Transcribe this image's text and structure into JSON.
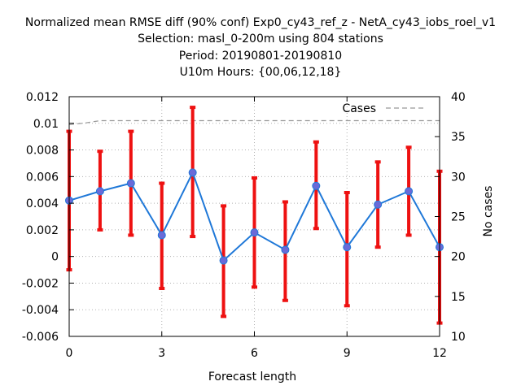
{
  "title_lines": [
    "Normalized mean RMSE diff (90% conf) Exp0_cy43_ref_z - NetA_cy43_iobs_roel_v1",
    "Selection: masl_0-200m using   804 stations",
    "Period: 20190801-20190810",
    "U10m   Hours: {00,06,12,18}"
  ],
  "chart_data": {
    "type": "line",
    "title": "Normalized mean RMSE diff (90% conf) Exp0_cy43_ref_z - NetA_cy43_iobs_roel_v1",
    "xlabel": "Forecast length",
    "ylabel": "",
    "y2label": "No cases",
    "xlim": [
      0,
      12
    ],
    "ylim": [
      -0.006,
      0.012
    ],
    "y2lim": [
      10,
      40
    ],
    "xticks": [
      "0",
      "3",
      "6",
      "9",
      "12"
    ],
    "yticks": [
      "-0.006",
      "-0.004",
      "-0.002",
      "0",
      "0.002",
      "0.004",
      "0.006",
      "0.008",
      "0.01",
      "0.012"
    ],
    "y2ticks": [
      "10",
      "15",
      "20",
      "25",
      "30",
      "35",
      "40"
    ],
    "grid": true,
    "legend_position": "top-right",
    "x": [
      0,
      1,
      2,
      3,
      4,
      5,
      6,
      7,
      8,
      9,
      10,
      11,
      12
    ],
    "series": [
      {
        "type": "line-errorbar",
        "color": "#1f78d8",
        "marker_color": "#6a6ad8",
        "error_color": "#ee1111",
        "values": [
          0.0042,
          0.0049,
          0.0055,
          0.0016,
          0.0063,
          -0.0003,
          0.0018,
          0.0005,
          0.0053,
          0.0007,
          0.0039,
          0.0049,
          0.0007
        ],
        "lower": [
          -0.001,
          0.002,
          0.0016,
          -0.0024,
          0.0015,
          -0.0045,
          -0.0023,
          -0.0033,
          0.0021,
          -0.0037,
          0.0007,
          0.0016,
          -0.005
        ],
        "upper": [
          0.0094,
          0.0079,
          0.0094,
          0.0055,
          0.0112,
          0.0038,
          0.0059,
          0.0041,
          0.0086,
          0.0048,
          0.0071,
          0.0082,
          0.0064
        ]
      },
      {
        "name": "Cases",
        "type": "dashed-line",
        "axis": "right",
        "color": "#999999",
        "x": [
          0,
          0.5,
          1,
          1.5,
          2,
          3,
          4,
          5,
          6,
          7,
          8,
          9,
          10,
          11,
          12
        ],
        "values": [
          36.5,
          36.7,
          37,
          37,
          37,
          37,
          37,
          37,
          37,
          37,
          37,
          37,
          37,
          37,
          37
        ]
      }
    ]
  }
}
